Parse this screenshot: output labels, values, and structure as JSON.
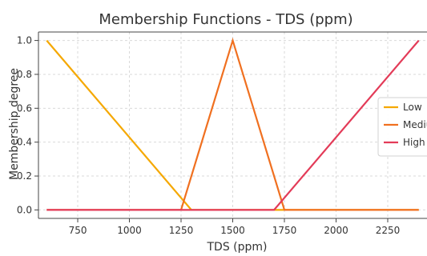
{
  "chart_data": {
    "type": "line",
    "title": "Membership Functions - TDS (ppm)",
    "xlabel": "TDS (ppm)",
    "ylabel": "Membership degree",
    "xlim": [
      560,
      2440
    ],
    "ylim": [
      -0.05,
      1.05
    ],
    "x_ticks": [
      {
        "value": 750,
        "label": "750"
      },
      {
        "value": 1000,
        "label": "1000"
      },
      {
        "value": 1250,
        "label": "1250"
      },
      {
        "value": 1500,
        "label": "1500"
      },
      {
        "value": 1750,
        "label": "1750"
      },
      {
        "value": 2000,
        "label": "2000"
      },
      {
        "value": 2250,
        "label": "2250"
      }
    ],
    "y_ticks": [
      {
        "value": 0.0,
        "label": "0.0"
      },
      {
        "value": 0.2,
        "label": "0.2"
      },
      {
        "value": 0.4,
        "label": "0.4"
      },
      {
        "value": 0.6,
        "label": "0.6"
      },
      {
        "value": 0.8,
        "label": "0.8"
      },
      {
        "value": 1.0,
        "label": "1.0"
      }
    ],
    "grid": true,
    "legend_position": "right",
    "series": [
      {
        "name": "Low",
        "color": "#f5a800",
        "points": [
          [
            600,
            1.0
          ],
          [
            1300,
            0.0
          ],
          [
            2400,
            0.0
          ]
        ]
      },
      {
        "name": "Medium",
        "color": "#f07020",
        "points": [
          [
            600,
            0.0
          ],
          [
            1250,
            0.0
          ],
          [
            1500,
            1.0
          ],
          [
            1750,
            0.0
          ],
          [
            2400,
            0.0
          ]
        ]
      },
      {
        "name": "High",
        "color": "#e33b58",
        "points": [
          [
            600,
            0.0
          ],
          [
            1700,
            0.0
          ],
          [
            2400,
            1.0
          ]
        ]
      }
    ]
  }
}
